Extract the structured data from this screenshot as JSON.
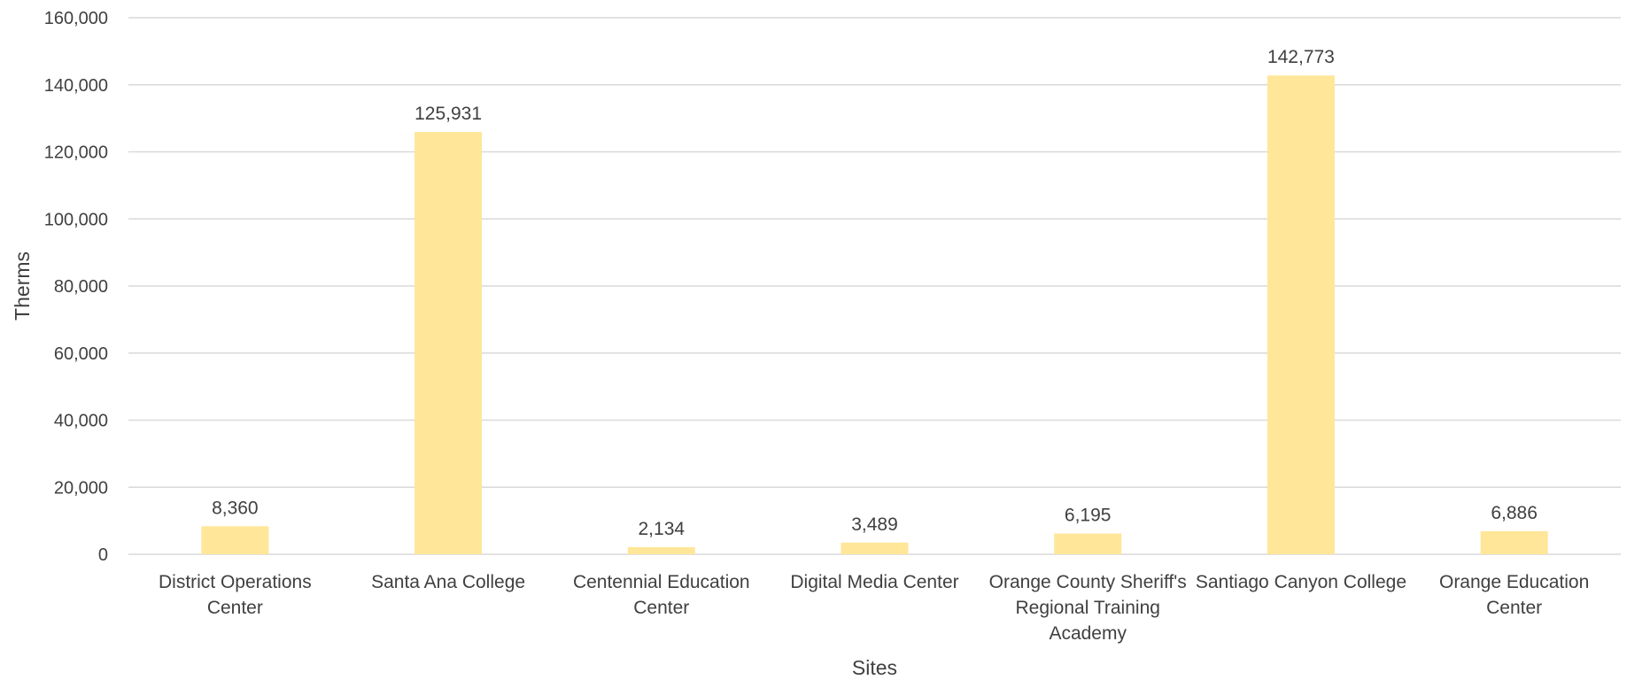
{
  "chart_data": {
    "type": "bar",
    "title": "",
    "xlabel": "Sites",
    "ylabel": "Therms",
    "ylim": [
      0,
      160000
    ],
    "yticks": [
      0,
      20000,
      40000,
      60000,
      80000,
      100000,
      120000,
      140000,
      160000
    ],
    "ytick_labels": [
      "0",
      "20,000",
      "40,000",
      "60,000",
      "80,000",
      "100,000",
      "120,000",
      "140,000",
      "160,000"
    ],
    "grid": true,
    "legend": "none",
    "bar_color": "#FFE699",
    "categories": [
      [
        "District Operations",
        "Center"
      ],
      [
        "Santa Ana College"
      ],
      [
        "Centennial Education",
        "Center"
      ],
      [
        "Digital Media Center"
      ],
      [
        "Orange County Sheriff's",
        "Regional Training",
        "Academy"
      ],
      [
        "Santiago Canyon College"
      ],
      [
        "Orange Education",
        "Center"
      ]
    ],
    "values": [
      8360,
      125931,
      2134,
      3489,
      6195,
      142773,
      6886
    ],
    "data_labels": [
      "8,360",
      "125,931",
      "2,134",
      "3,489",
      "6,195",
      "142,773",
      "6,886"
    ]
  }
}
